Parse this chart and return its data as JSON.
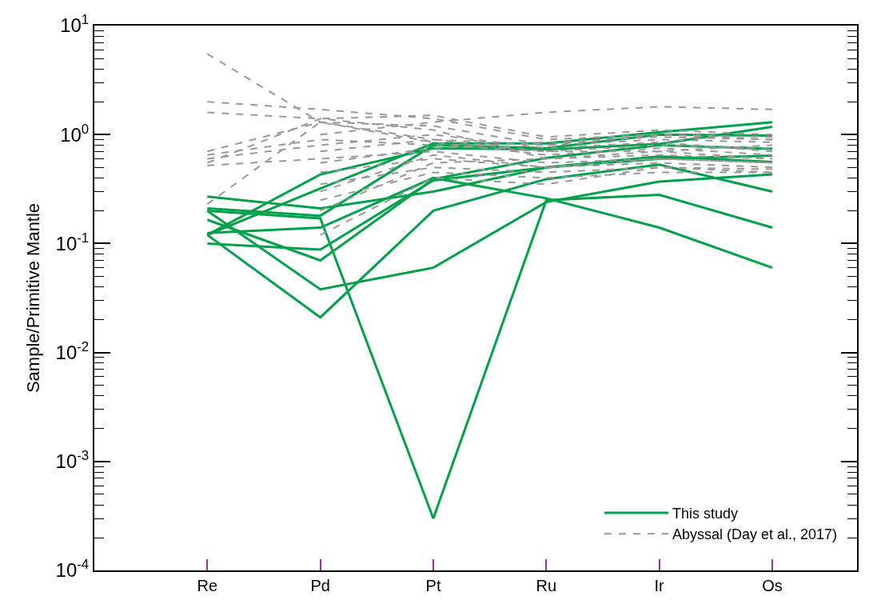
{
  "chart_data": {
    "type": "line",
    "ylabel": "Sample/Primitive Mantle",
    "log": "y",
    "legend": "bottom right",
    "marker": "none",
    "categories": [
      "Re",
      "Pd",
      "Pt",
      "Ru",
      "Ir",
      "Os"
    ],
    "ylim": [
      0.0001,
      10
    ],
    "yticks": [
      {
        "value": 0.0001,
        "label": "10$^{-4}$"
      },
      {
        "value": 0.001,
        "label": "10$^{-3}$"
      },
      {
        "value": 0.01,
        "label": "10$^{-2}$"
      },
      {
        "value": 0.1,
        "label": "10$^{-1}$"
      },
      {
        "value": 1,
        "label": "10$^{0}$"
      },
      {
        "value": 10,
        "label": "10$^{1}$"
      }
    ],
    "series": [
      {
        "name": "This study",
        "color": "#00a14b",
        "line_style": "solid",
        "values": [
          0.12,
          0.43,
          0.75,
          0.73,
          0.82,
          1.18
        ]
      },
      {
        "color": "#00a14b",
        "line_style": "solid",
        "values": [
          0.12,
          0.32,
          0.83,
          0.83,
          1.05,
          1.3
        ]
      },
      {
        "color": "#00a14b",
        "line_style": "solid",
        "values": [
          0.27,
          0.21,
          0.3,
          0.5,
          0.6,
          0.64
        ]
      },
      {
        "color": "#00a14b",
        "line_style": "solid",
        "values": [
          0.21,
          0.18,
          0.8,
          0.75,
          1.0,
          0.98
        ]
      },
      {
        "color": "#00a14b",
        "line_style": "solid",
        "values": [
          0.2,
          0.17,
          0.0003,
          0.25,
          0.28,
          0.14
        ]
      },
      {
        "color": "#00a14b",
        "line_style": "solid",
        "values": [
          0.165,
          0.07,
          0.39,
          0.61,
          0.8,
          0.74
        ]
      },
      {
        "color": "#00a14b",
        "line_style": "solid",
        "values": [
          0.12,
          0.021,
          0.2,
          0.39,
          0.53,
          0.3
        ]
      },
      {
        "color": "#00a14b",
        "line_style": "solid",
        "values": [
          0.1,
          0.088,
          0.38,
          0.5,
          0.63,
          0.56
        ]
      },
      {
        "color": "#00a14b",
        "line_style": "solid",
        "values": [
          0.125,
          0.14,
          0.4,
          0.26,
          0.14,
          0.06
        ]
      },
      {
        "color": "#00a14b",
        "line_style": "solid",
        "values": [
          0.2,
          0.038,
          0.06,
          0.24,
          0.37,
          0.43
        ]
      },
      {
        "name": "Abyssal (Day et al., 2017)",
        "color": "#999999",
        "line_style": "dashed",
        "values": [
          5.5,
          1.3,
          0.9,
          0.7,
          0.8,
          0.75
        ]
      },
      {
        "color": "#999999",
        "line_style": "dashed",
        "values": [
          2.0,
          1.7,
          1.4,
          0.9,
          1.0,
          0.9
        ]
      },
      {
        "color": "#999999",
        "line_style": "dashed",
        "values": [
          1.6,
          1.4,
          1.5,
          0.95,
          1.1,
          1.0
        ]
      },
      {
        "color": "#999999",
        "line_style": "dashed",
        "values": [
          0.7,
          1.3,
          1.2,
          0.8,
          0.9,
          0.85
        ]
      },
      {
        "color": "#999999",
        "line_style": "dashed",
        "values": [
          0.65,
          0.9,
          0.8,
          0.7,
          0.7,
          0.8
        ]
      },
      {
        "color": "#999999",
        "line_style": "dashed",
        "values": [
          0.6,
          0.8,
          1.0,
          0.75,
          0.85,
          0.7
        ]
      },
      {
        "color": "#999999",
        "line_style": "dashed",
        "values": [
          0.55,
          1.4,
          1.1,
          0.6,
          0.7,
          0.6
        ]
      },
      {
        "color": "#999999",
        "line_style": "dashed",
        "values": [
          0.52,
          0.6,
          0.7,
          0.55,
          0.6,
          0.55
        ]
      },
      {
        "color": "#999999",
        "line_style": "dashed",
        "values": [
          0.23,
          1.3,
          0.85,
          0.65,
          0.75,
          0.65
        ]
      },
      {
        "color": "#999999",
        "line_style": "dashed",
        "values": [
          null,
          1.0,
          1.3,
          1.6,
          1.8,
          1.7
        ]
      },
      {
        "color": "#999999",
        "line_style": "dashed",
        "values": [
          null,
          0.45,
          0.6,
          0.5,
          0.55,
          0.5
        ]
      },
      {
        "color": "#999999",
        "line_style": "dashed",
        "values": [
          null,
          0.35,
          0.5,
          0.45,
          0.5,
          0.45
        ]
      },
      {
        "color": "#999999",
        "line_style": "dashed",
        "values": [
          null,
          0.25,
          0.45,
          0.4,
          0.45,
          0.45
        ]
      },
      {
        "color": "#999999",
        "line_style": "dashed",
        "values": [
          null,
          0.12,
          0.4,
          0.35,
          0.5,
          0.48
        ]
      },
      {
        "color": "#999999",
        "line_style": "dashed",
        "values": [
          null,
          0.2,
          0.55,
          0.6,
          0.65,
          0.6
        ]
      },
      {
        "color": "#999999",
        "line_style": "dashed",
        "values": [
          null,
          0.3,
          0.65,
          0.5,
          0.6,
          0.55
        ]
      },
      {
        "color": "#999999",
        "line_style": "dashed",
        "values": [
          null,
          0.55,
          0.75,
          0.85,
          0.95,
          0.9
        ]
      },
      {
        "color": "#999999",
        "line_style": "dashed",
        "values": [
          null,
          0.7,
          0.9,
          0.8,
          1.0,
          0.95
        ]
      }
    ]
  }
}
